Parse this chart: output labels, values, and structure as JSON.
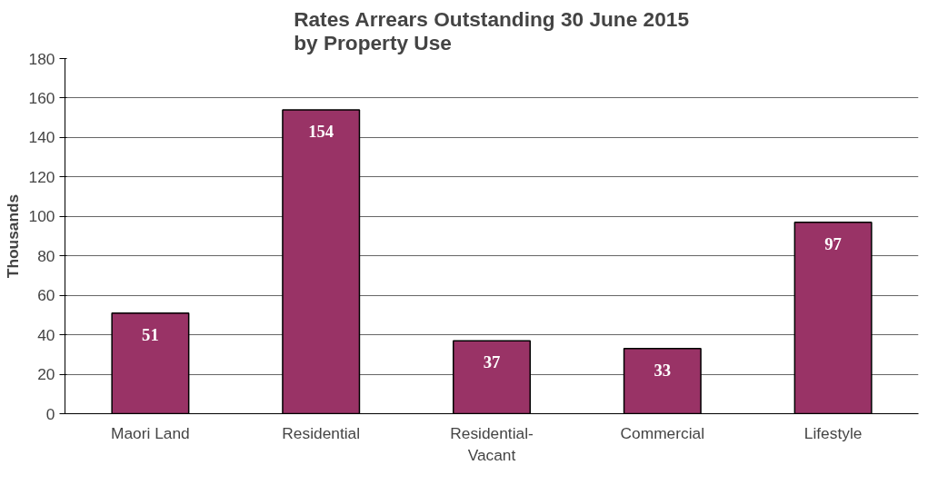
{
  "chart_data": {
    "type": "bar",
    "title": "Rates Arrears Outstanding 30 June 2015\nby Property Use",
    "ylabel": "Thousands",
    "categories": [
      "Maori Land",
      "Residential",
      "Residential-Vacant",
      "Commercial",
      "Lifestyle"
    ],
    "values": [
      51,
      154,
      37,
      33,
      97
    ],
    "color": "#993366",
    "ylim": [
      0,
      180
    ],
    "yticks": [
      0,
      20,
      40,
      60,
      80,
      100,
      120,
      140,
      160,
      180
    ],
    "grid": "y",
    "data_labels": true
  }
}
